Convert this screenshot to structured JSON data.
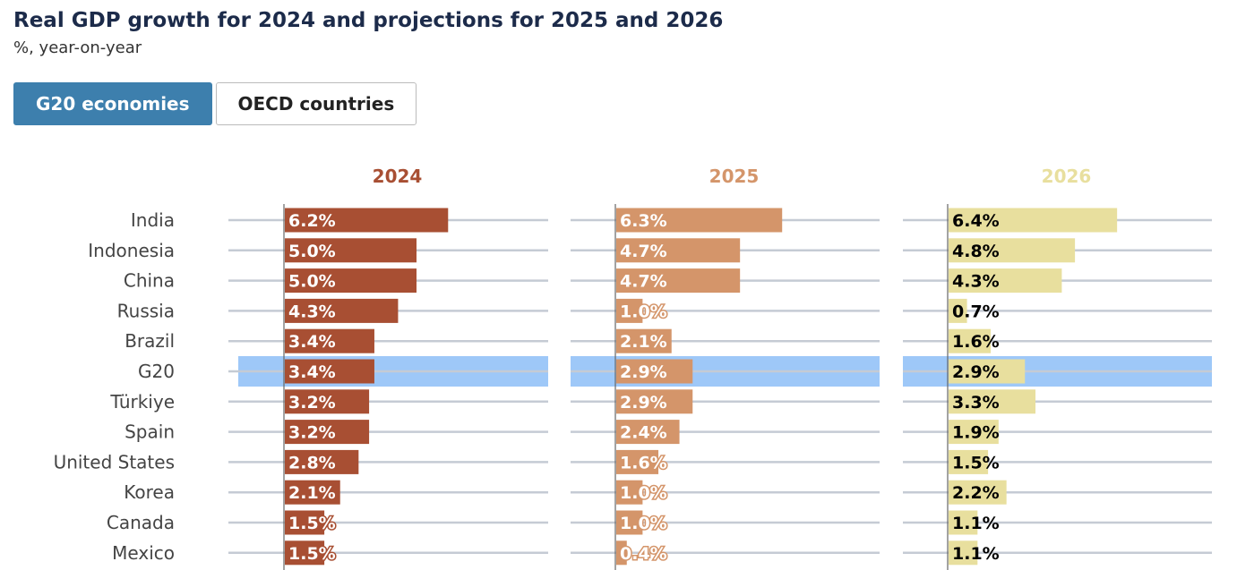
{
  "title": "Real GDP growth for 2024 and projections for 2025 and 2026",
  "subtitle": "%, year-on-year",
  "tabs": [
    {
      "label": "G20 economies",
      "active": true
    },
    {
      "label": "OECD countries",
      "active": false
    }
  ],
  "chart_data": {
    "type": "bar",
    "orientation": "horizontal",
    "categories": [
      "India",
      "Indonesia",
      "China",
      "Russia",
      "Brazil",
      "G20",
      "Türkiye",
      "Spain",
      "United States",
      "Korea",
      "Canada",
      "Mexico"
    ],
    "highlight": "G20",
    "highlight_color": "#9ec8f8",
    "series": [
      {
        "name": "2024",
        "color": "#a84f33",
        "label_color": "#ffffff",
        "values": [
          6.2,
          5.0,
          5.0,
          4.3,
          3.4,
          3.4,
          3.2,
          3.2,
          2.8,
          2.1,
          1.5,
          1.5
        ],
        "labels": [
          "6.2%",
          "5.0%",
          "5.0%",
          "4.3%",
          "3.4%",
          "3.4%",
          "3.2%",
          "3.2%",
          "2.8%",
          "2.1%",
          "1.5%",
          "1.5%"
        ]
      },
      {
        "name": "2025",
        "color": "#d4956a",
        "label_color": "#ffffff",
        "values": [
          6.3,
          4.7,
          4.7,
          1.0,
          2.1,
          2.9,
          2.9,
          2.4,
          1.6,
          1.0,
          1.0,
          0.4
        ],
        "labels": [
          "6.3%",
          "4.7%",
          "4.7%",
          "1.0%",
          "2.1%",
          "2.9%",
          "2.9%",
          "2.4%",
          "1.6%",
          "1.0%",
          "1.0%",
          "0.4%"
        ]
      },
      {
        "name": "2026",
        "color": "#e8df9e",
        "label_color": "#000000",
        "values": [
          6.4,
          4.8,
          4.3,
          0.7,
          1.6,
          2.9,
          3.3,
          1.9,
          1.5,
          2.2,
          1.1,
          1.1
        ],
        "labels": [
          "6.4%",
          "4.8%",
          "4.3%",
          "0.7%",
          "1.6%",
          "2.9%",
          "3.3%",
          "1.9%",
          "1.5%",
          "2.2%",
          "1.1%",
          "1.1%"
        ]
      }
    ]
  }
}
